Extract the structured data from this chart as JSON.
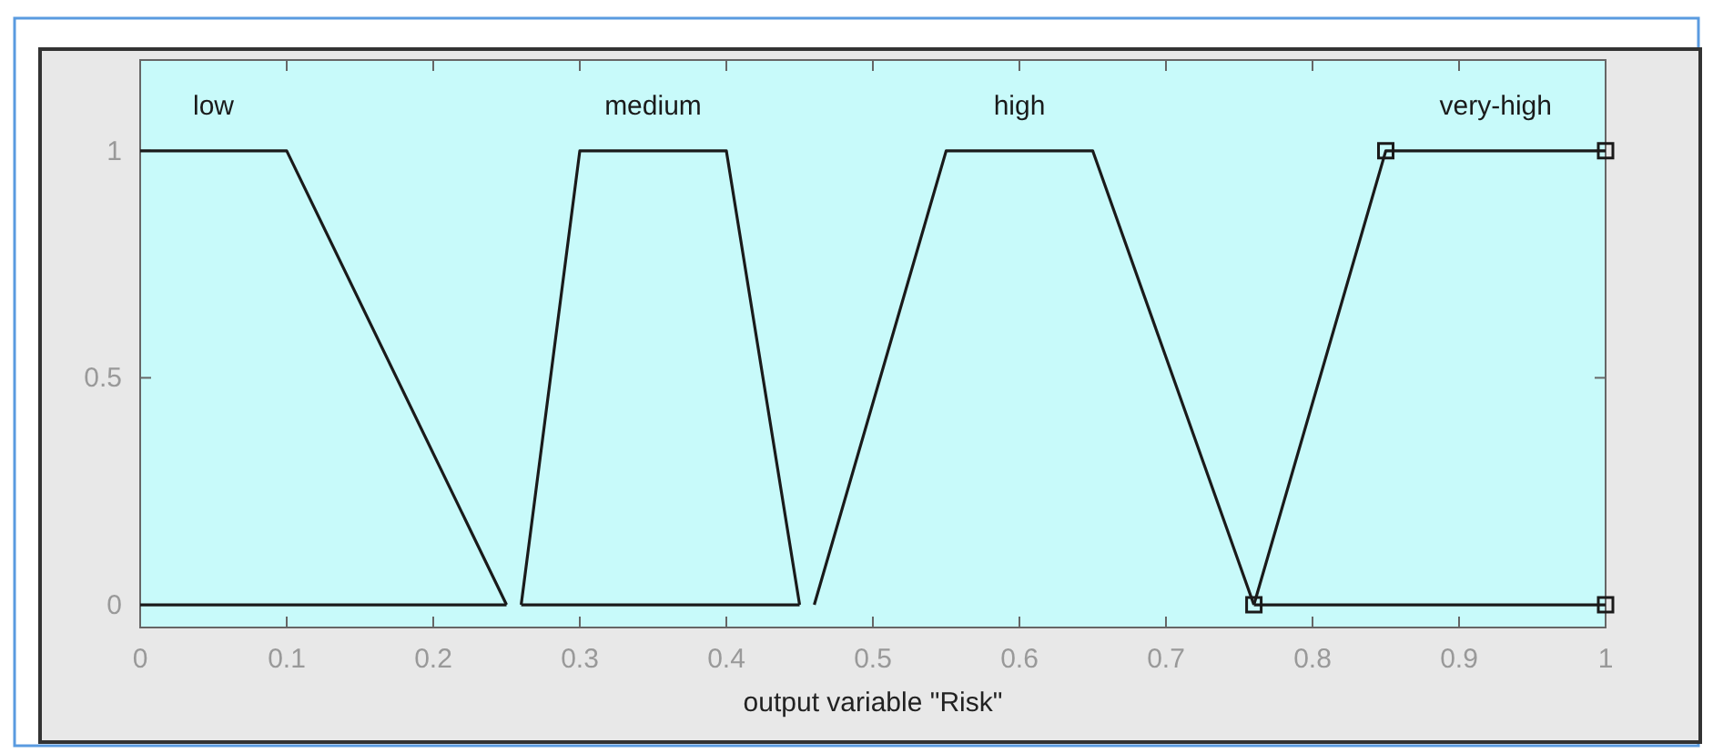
{
  "chart_data": {
    "type": "line",
    "xlabel": "output variable \"Risk\"",
    "xlim": [
      0,
      1
    ],
    "ylim": [
      -0.05,
      1.2
    ],
    "xticks": [
      0,
      0.1,
      0.2,
      0.3,
      0.4,
      0.5,
      0.6,
      0.7,
      0.8,
      0.9,
      1
    ],
    "yticks": [
      0,
      0.5,
      1
    ],
    "grid": false,
    "line_style": "solid",
    "series": [
      {
        "name": "low",
        "color": "#1a1a1a",
        "x": [
          0,
          0.1,
          0.25,
          0.255,
          0.26,
          0.45,
          0.455,
          0.76,
          1
        ],
        "values": [
          1,
          1,
          0,
          null,
          0,
          0,
          null,
          0,
          0
        ],
        "marker": "none"
      },
      {
        "name": "medium",
        "color": "#1a1a1a",
        "x": [
          0,
          0.25,
          0.255,
          0.26,
          0.3,
          0.4,
          0.45
        ],
        "values": [
          0,
          0,
          null,
          0,
          1,
          1,
          0
        ],
        "marker": "none"
      },
      {
        "name": "high",
        "color": "#1a1a1a",
        "x": [
          0.46,
          0.55,
          0.65,
          0.76
        ],
        "values": [
          0,
          1,
          1,
          0
        ],
        "marker": "none"
      },
      {
        "name": "very-high",
        "color": "#1a1a1a",
        "x": [
          0.76,
          0.85,
          1
        ],
        "values": [
          0,
          1,
          1
        ],
        "marker": "square"
      },
      {
        "type": "scatter",
        "color": "#1a1a1a",
        "x": [
          1
        ],
        "values": [
          0
        ],
        "marker": "square"
      }
    ]
  }
}
